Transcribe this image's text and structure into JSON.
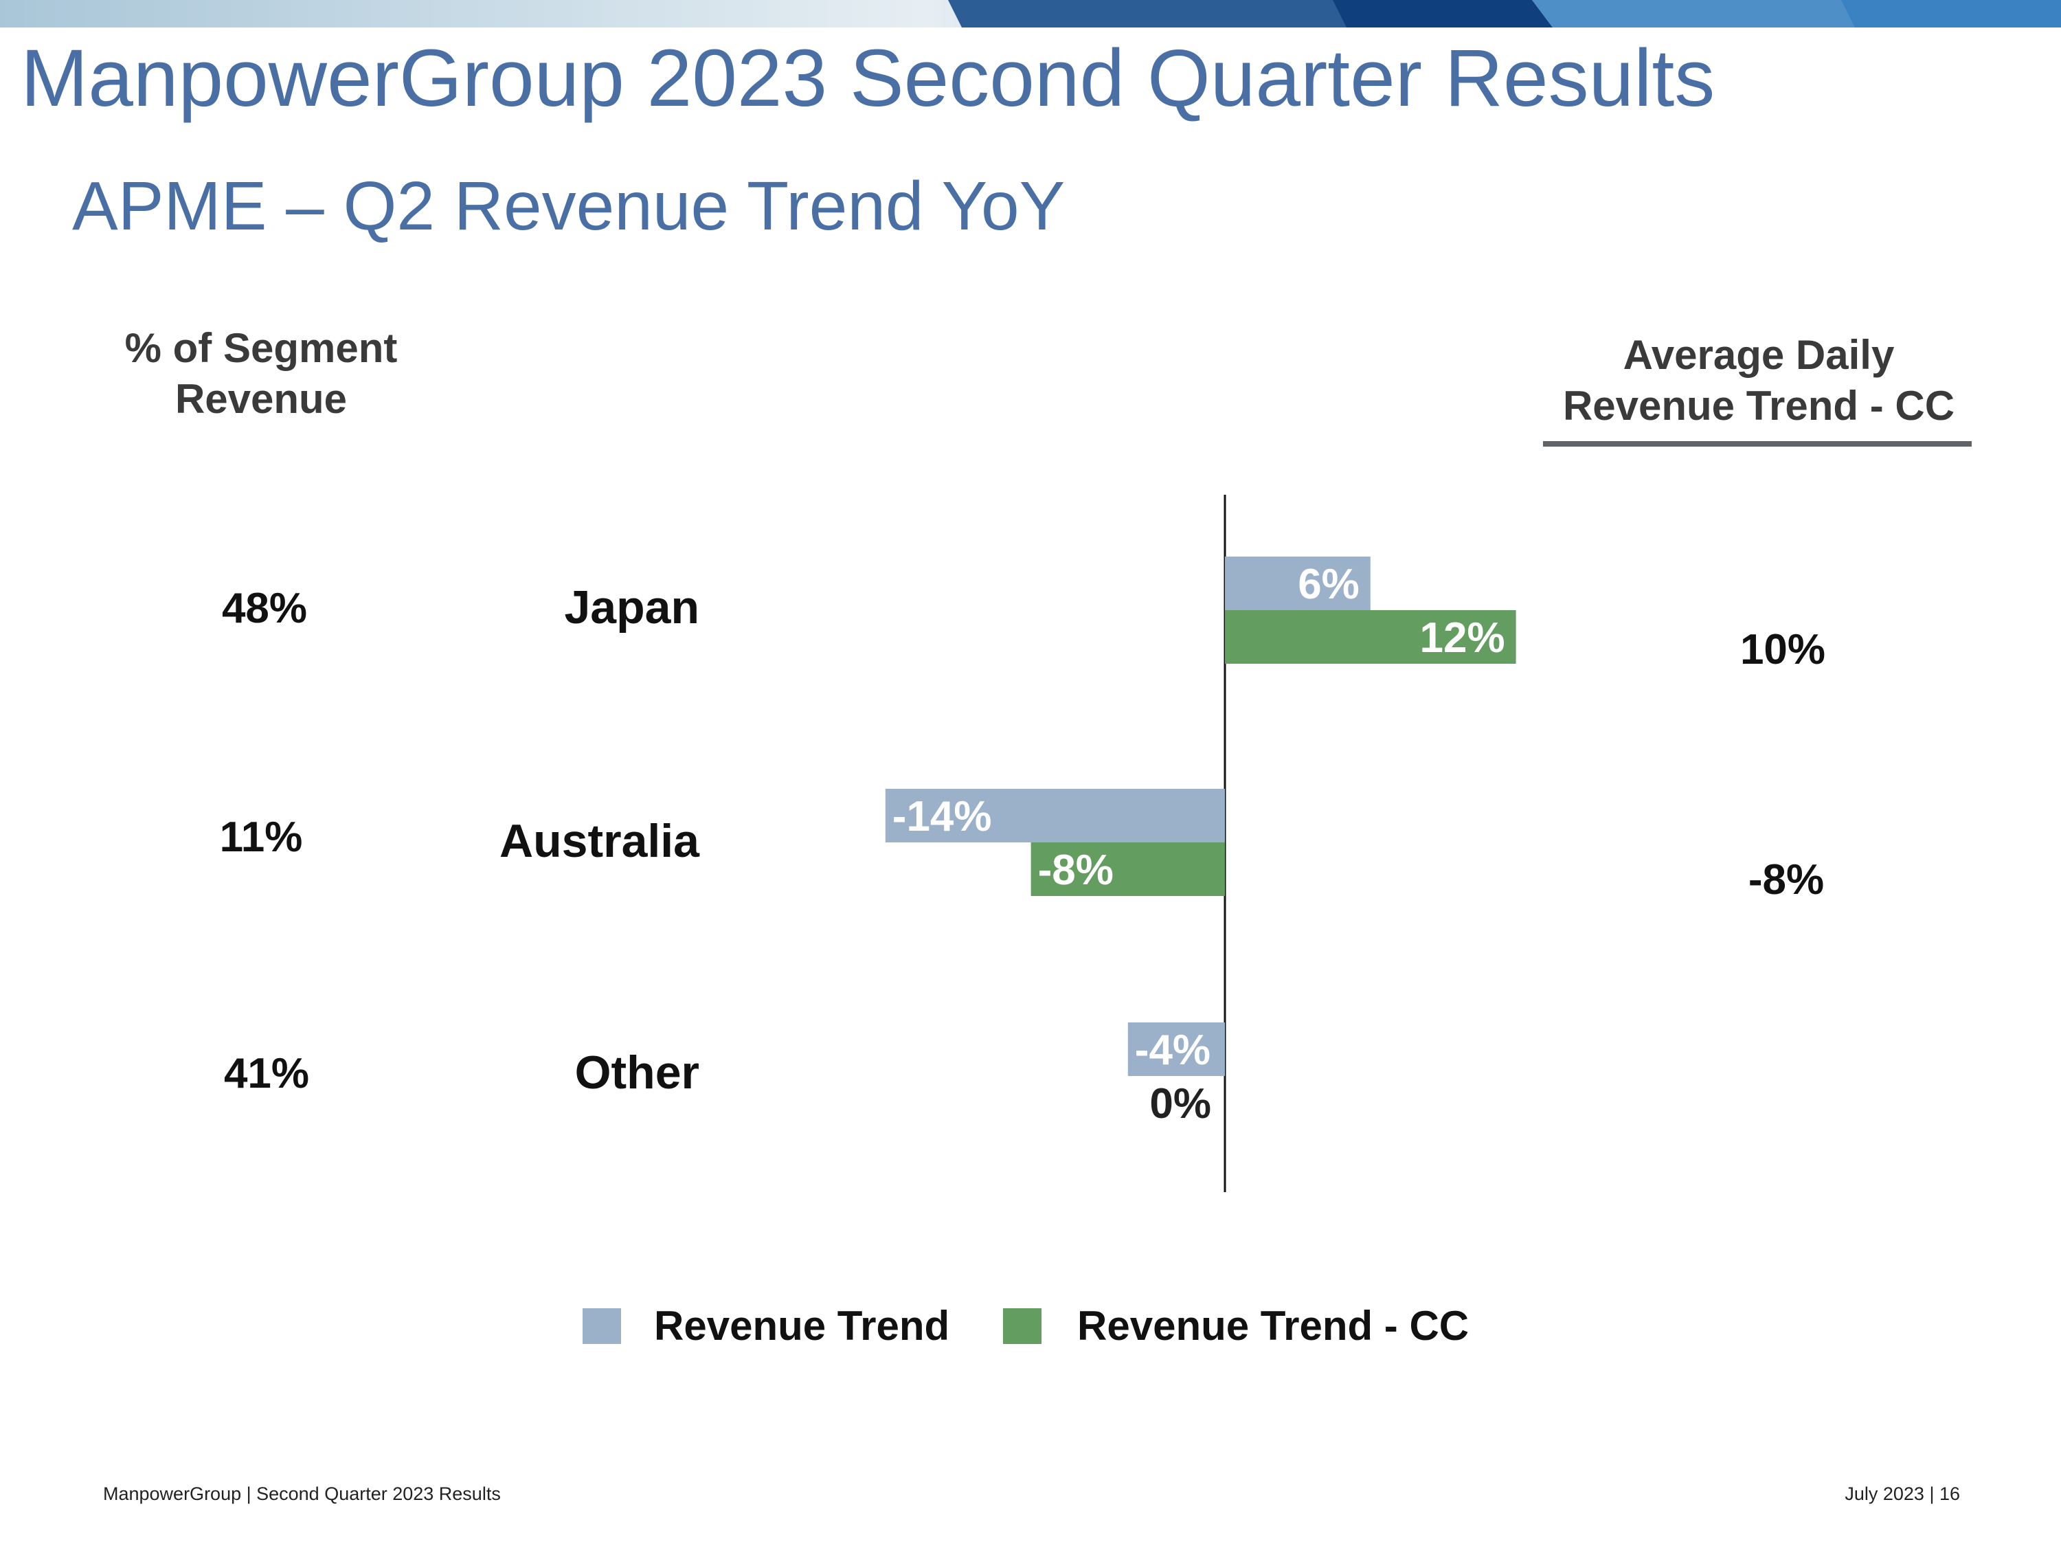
{
  "slide": {
    "title": "ManpowerGroup 2023 Second Quarter Results",
    "subtitle": "APME – Q2 Revenue Trend YoY",
    "footer_left": "ManpowerGroup  |  Second Quarter 2023 Results",
    "footer_right": "July 2023   |   16"
  },
  "table": {
    "left_header_line1": "% of Segment",
    "left_header_line2": "Revenue",
    "right_header_line1": "Average Daily",
    "right_header_line2": "Revenue Trend - CC",
    "rows": [
      {
        "share": "48%",
        "region": "Japan",
        "adrt": "10%"
      },
      {
        "share": "11%",
        "region": "Australia",
        "adrt": "-8%"
      },
      {
        "share": "41%",
        "region": "Other",
        "adrt": ""
      }
    ]
  },
  "colors": {
    "title": "#4a6fa5",
    "revenue_trend": "#9bb0c9",
    "revenue_trend_cc": "#639e60"
  },
  "chart_data": {
    "type": "bar",
    "orientation": "horizontal",
    "categories": [
      "Japan",
      "Australia",
      "Other"
    ],
    "series": [
      {
        "name": "Revenue Trend",
        "values": [
          6,
          -14,
          -4
        ],
        "labels": [
          "6%",
          "-14%",
          "-4%"
        ]
      },
      {
        "name": "Revenue Trend - CC",
        "values": [
          12,
          -8,
          0
        ],
        "labels": [
          "12%",
          "-8%",
          "0%"
        ]
      }
    ],
    "xlim": [
      -14,
      12
    ],
    "legend_position": "bottom",
    "grid": false
  }
}
